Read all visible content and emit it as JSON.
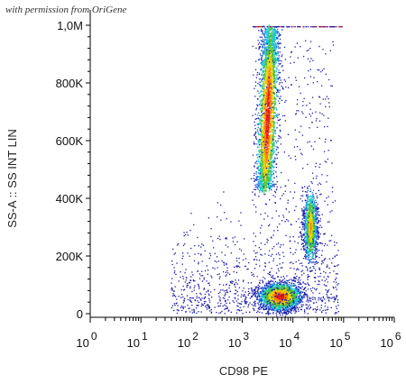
{
  "watermark": "with permission from OriGene",
  "chart_data": {
    "type": "scatter",
    "xlabel": "CD98 PE",
    "ylabel": "SS-A :: SS INT LIN",
    "x_scale": "log",
    "x_ticks": [
      {
        "base": "10",
        "exp": "0"
      },
      {
        "base": "10",
        "exp": "1"
      },
      {
        "base": "10",
        "exp": "2"
      },
      {
        "base": "10",
        "exp": "3"
      },
      {
        "base": "10",
        "exp": "4"
      },
      {
        "base": "10",
        "exp": "5"
      },
      {
        "base": "10",
        "exp": "6"
      }
    ],
    "y_ticks": [
      "0",
      "200K",
      "400K",
      "600K",
      "800K",
      "1,0M"
    ],
    "ylim": [
      0,
      1000000
    ],
    "xlim_log10": [
      0,
      6
    ],
    "colormap": "density: blue-cyan-green-yellow-red",
    "populations": [
      {
        "center_log10_x": 3.75,
        "center_y": 60000,
        "spread": "dense core"
      },
      {
        "center_log10_x": 3.5,
        "center_y": 700000,
        "spread": "vertical streak 450K–1,0M"
      },
      {
        "center_log10_x": 4.3,
        "center_y": 300000,
        "spread": "vertical streak 200K–450K"
      }
    ]
  }
}
